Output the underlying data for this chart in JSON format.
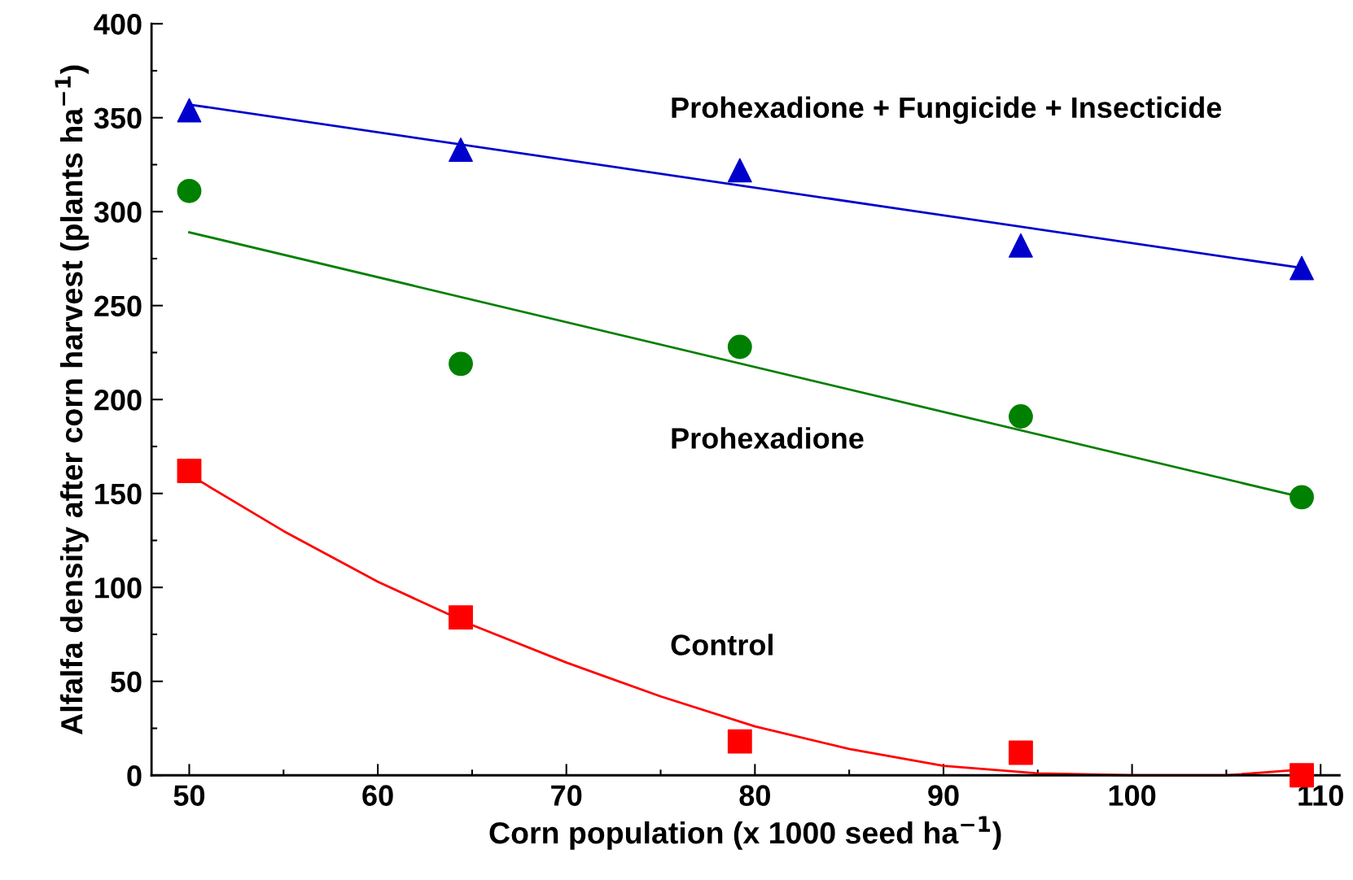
{
  "chart_data": {
    "type": "scatter",
    "xlabel": "Corn population (x 1000 seed ha$^{−1}$)",
    "ylabel": "Alfalfa density after corn harvest (plants ha$^{−1}$)",
    "xlim": [
      48,
      111
    ],
    "ylim": [
      0,
      400
    ],
    "xticks": [
      50,
      {
        "value": 55,
        "label": null
      },
      60,
      {
        "value": 65,
        "label": null
      },
      70,
      {
        "value": 75,
        "label": null
      },
      80,
      {
        "value": 85,
        "label": null
      },
      90,
      {
        "value": 95,
        "label": null
      },
      100,
      {
        "value": 105,
        "label": null
      },
      110
    ],
    "yticks": [
      0,
      {
        "value": 25,
        "label": null
      },
      50,
      {
        "value": 75,
        "label": null
      },
      100,
      {
        "value": 125,
        "label": null
      },
      150,
      {
        "value": 175,
        "label": null
      },
      200,
      {
        "value": 225,
        "label": null
      },
      250,
      {
        "value": 275,
        "label": null
      },
      300,
      {
        "value": 325,
        "label": null
      },
      350,
      {
        "value": 375,
        "label": null
      },
      400
    ],
    "grid": false,
    "series": [
      {
        "type": "scatter",
        "marker": "triangle",
        "color": "#0000cc",
        "x": [
          50,
          64.4,
          79.2,
          94.1,
          109
        ],
        "values": [
          354,
          333,
          322,
          282,
          270
        ]
      },
      {
        "type": "scatter",
        "marker": "circle",
        "color": "#008000",
        "x": [
          50,
          64.4,
          79.2,
          94.1,
          109
        ],
        "values": [
          311,
          219,
          228,
          191,
          148
        ]
      },
      {
        "type": "scatter",
        "marker": "square",
        "color": "#ff0000",
        "x": [
          50,
          64.4,
          79.2,
          94.1,
          109
        ],
        "values": [
          162,
          84,
          18,
          12,
          0
        ]
      },
      {
        "type": "line",
        "marker": "none",
        "color": "#0000cc",
        "x": [
          50,
          109
        ],
        "values": [
          357,
          270
        ]
      },
      {
        "type": "line",
        "marker": "none",
        "color": "#008000",
        "x": [
          50,
          109
        ],
        "values": [
          289,
          148
        ]
      },
      {
        "type": "line",
        "marker": "none",
        "color": "#ff0000",
        "x": [
          50,
          55,
          60,
          65,
          70,
          75,
          80,
          85,
          90,
          95,
          100,
          105,
          109
        ],
        "values": [
          160,
          130,
          103,
          80,
          60,
          42,
          26,
          14,
          5,
          1,
          0,
          0,
          3
        ]
      }
    ],
    "annotations": [
      "Prohexadione + Fungicide + Insecticide",
      "Prohexadione",
      "Control"
    ]
  }
}
